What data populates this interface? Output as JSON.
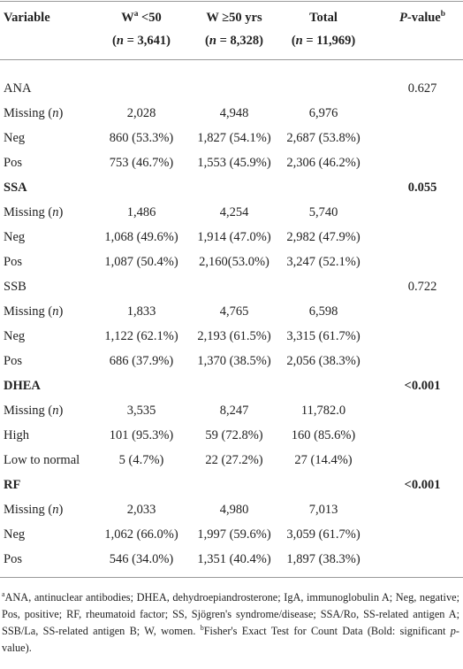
{
  "table": {
    "columns": [
      {
        "lines": [
          [
            "Variable"
          ]
        ]
      },
      {
        "lines": [
          [
            "W",
            {
              "sup": "a"
            },
            " <50"
          ],
          [
            "(",
            {
              "i": "n"
            },
            " = 3,641)"
          ]
        ]
      },
      {
        "lines": [
          [
            "W ≥50 yrs"
          ],
          [
            "(",
            {
              "i": "n"
            },
            " = 8,328)"
          ]
        ]
      },
      {
        "lines": [
          [
            "Total"
          ],
          [
            "(",
            {
              "i": "n"
            },
            " = 11,969)"
          ]
        ]
      },
      {
        "lines": [
          [
            {
              "i": "P"
            },
            "-value",
            {
              "sup": "b"
            }
          ]
        ]
      }
    ],
    "sections": [
      {
        "label": [
          "ANA"
        ],
        "p": "0.627",
        "bold": false,
        "rows": [
          {
            "label": [
              "Missing (",
              {
                "i": "n"
              },
              ")"
            ],
            "cells": [
              "2,028",
              "4,948",
              "6,976"
            ]
          },
          {
            "label": [
              "Neg"
            ],
            "cells": [
              "860 (53.3%)",
              "1,827 (54.1%)",
              "2,687 (53.8%)"
            ]
          },
          {
            "label": [
              "Pos"
            ],
            "cells": [
              "753 (46.7%)",
              "1,553 (45.9%)",
              "2,306 (46.2%)"
            ]
          }
        ]
      },
      {
        "label": [
          "SSA"
        ],
        "p": "0.055",
        "bold": true,
        "rows": [
          {
            "label": [
              "Missing (",
              {
                "i": "n"
              },
              ")"
            ],
            "cells": [
              "1,486",
              "4,254",
              "5,740"
            ]
          },
          {
            "label": [
              "Neg"
            ],
            "cells": [
              "1,068 (49.6%)",
              "1,914 (47.0%)",
              "2,982 (47.9%)"
            ]
          },
          {
            "label": [
              "Pos"
            ],
            "cells": [
              "1,087 (50.4%)",
              "2,160(53.0%)",
              "3,247 (52.1%)"
            ]
          }
        ]
      },
      {
        "label": [
          "SSB"
        ],
        "p": "0.722",
        "bold": false,
        "rows": [
          {
            "label": [
              "Missing (",
              {
                "i": "n"
              },
              ")"
            ],
            "cells": [
              "1,833",
              "4,765",
              "6,598"
            ]
          },
          {
            "label": [
              "Neg"
            ],
            "cells": [
              "1,122 (62.1%)",
              "2,193 (61.5%)",
              "3,315 (61.7%)"
            ]
          },
          {
            "label": [
              "Pos"
            ],
            "cells": [
              "686 (37.9%)",
              "1,370 (38.5%)",
              "2,056 (38.3%)"
            ]
          }
        ]
      },
      {
        "label": [
          "DHEA"
        ],
        "p": "<0.001",
        "bold": true,
        "rows": [
          {
            "label": [
              "Missing (",
              {
                "i": "n"
              },
              ")"
            ],
            "cells": [
              "3,535",
              "8,247",
              "11,782.0"
            ]
          },
          {
            "label": [
              "High"
            ],
            "cells": [
              "101 (95.3%)",
              "59 (72.8%)",
              "160 (85.6%)"
            ]
          },
          {
            "label": [
              "Low to normal"
            ],
            "cells": [
              "5 (4.7%)",
              "22 (27.2%)",
              "27 (14.4%)"
            ]
          }
        ]
      },
      {
        "label": [
          "RF"
        ],
        "p": "<0.001",
        "bold": true,
        "rows": [
          {
            "label": [
              "Missing (",
              {
                "i": "n"
              },
              ")"
            ],
            "cells": [
              "2,033",
              "4,980",
              "7,013"
            ]
          },
          {
            "label": [
              "Neg"
            ],
            "cells": [
              "1,062 (66.0%)",
              "1,997 (59.6%)",
              "3,059 (61.7%)"
            ]
          },
          {
            "label": [
              "Pos"
            ],
            "cells": [
              "546 (34.0%)",
              "1,351 (40.4%)",
              "1,897 (38.3%)"
            ]
          }
        ]
      }
    ],
    "footnote": [
      {
        "sup": "a"
      },
      "ANA, antinuclear antibodies; DHEA, dehydroepiandrosterone; IgA, immunoglobulin A; Neg, negative; Pos, positive; RF, rheumatoid factor; SS, Sjögren's syndrome/disease; SSA/Ro, SS-related antigen A; SSB/La, SS-related antigen B; W, women. ",
      {
        "sup": "b"
      },
      "Fisher's Exact Test for Count Data (Bold: significant ",
      {
        "i": "p"
      },
      "-value)."
    ]
  }
}
